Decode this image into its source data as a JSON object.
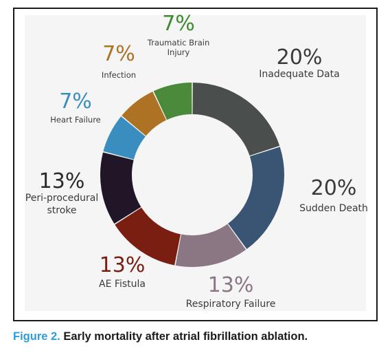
{
  "caption": {
    "figure_label": "Figure 2.",
    "text": "Early mortality after atrial fibrillation ablation."
  },
  "chart_data": {
    "type": "pie",
    "donut": true,
    "categories": [
      "Inadequate Data",
      "Sudden Death",
      "Respiratory Failure",
      "AE Fistula",
      "Peri-procedural stroke",
      "Heart Failure",
      "Infection",
      "Traumatic Brain Injury"
    ],
    "label_lines": [
      [
        "Inadequate Data"
      ],
      [
        "Sudden Death"
      ],
      [
        "Respiratory Failure"
      ],
      [
        "AE Fistula"
      ],
      [
        "Peri-procedural",
        "stroke"
      ],
      [
        "Heart Failure"
      ],
      [
        "Infection"
      ],
      [
        "Traumatic Brain",
        "Injury"
      ]
    ],
    "values": [
      20,
      20,
      13,
      13,
      13,
      7,
      7,
      7
    ],
    "value_labels": [
      "20%",
      "20%",
      "13%",
      "13%",
      "13%",
      "7%",
      "7%",
      "7%"
    ],
    "colors": [
      "#4a4e4d",
      "#3a5474",
      "#8b7684",
      "#7b1e12",
      "#201628",
      "#3a8ebf",
      "#ad7224",
      "#4a8a3a"
    ],
    "label_colors": [
      "#3a3a3a",
      "#3a3a3a",
      "#8b7684",
      "#7b1e12",
      "#2a2a2a",
      "#3a8ebf",
      "#ad7224",
      "#3e8a2e"
    ],
    "legend": "none"
  }
}
